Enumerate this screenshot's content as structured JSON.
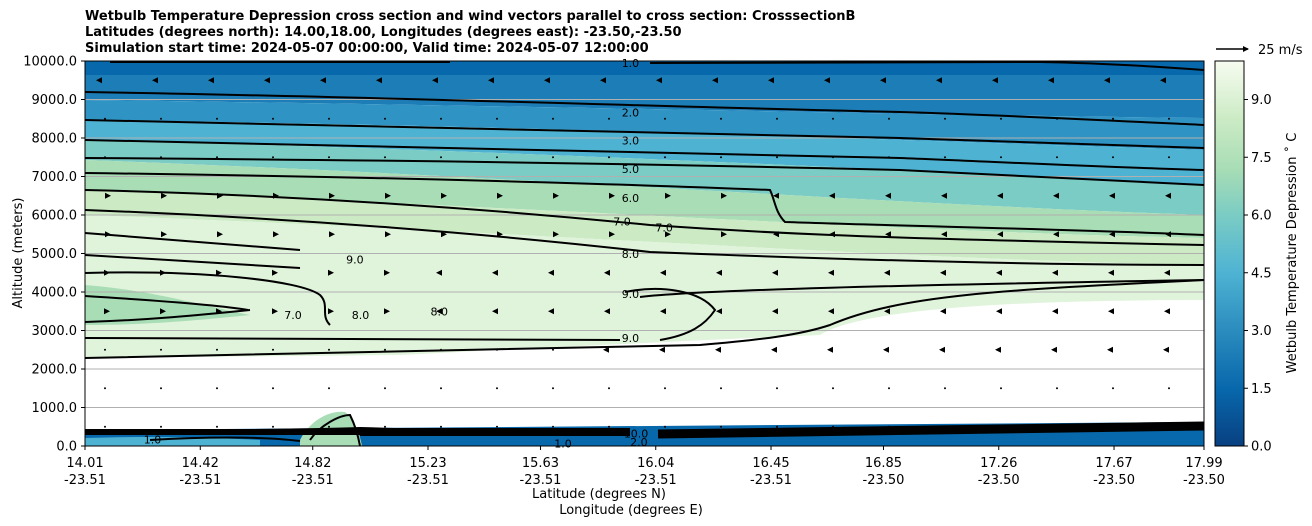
{
  "title_lines": [
    "Wetbulb Temperature Depression cross section and wind vectors parallel to cross section: CrosssectionB",
    "Latitudes (degrees north): 14.00,18.00, Longitudes (degrees east): -23.50,-23.50",
    "Simulation start time: 2024-05-07 00:00:00, Valid time: 2024-05-07 12:00:00"
  ],
  "chart_data": {
    "type": "heatmap",
    "ylabel": "Altitude (meters)",
    "xlabel_lat": "Latitude (degrees N)",
    "xlabel_lon": "Longitude (degrees E)",
    "ylim": [
      0,
      10000
    ],
    "y_ticks": [
      "0.0",
      "1000.0",
      "2000.0",
      "3000.0",
      "4000.0",
      "5000.0",
      "6000.0",
      "7000.0",
      "8000.0",
      "9000.0",
      "10000.0"
    ],
    "x_ticks": [
      {
        "lat": "14.01",
        "lon": "-23.51"
      },
      {
        "lat": "14.42",
        "lon": "-23.51"
      },
      {
        "lat": "14.82",
        "lon": "-23.51"
      },
      {
        "lat": "15.23",
        "lon": "-23.51"
      },
      {
        "lat": "15.63",
        "lon": "-23.51"
      },
      {
        "lat": "16.04",
        "lon": "-23.51"
      },
      {
        "lat": "16.45",
        "lon": "-23.51"
      },
      {
        "lat": "16.85",
        "lon": "-23.50"
      },
      {
        "lat": "17.26",
        "lon": "-23.50"
      },
      {
        "lat": "17.67",
        "lon": "-23.50"
      },
      {
        "lat": "17.99",
        "lon": "-23.50"
      }
    ],
    "grid": "horizontal",
    "colorbar": {
      "label": "Wetbulb Temperature Depression ˚ C",
      "range": [
        0,
        10
      ],
      "ticks": [
        "0.0",
        "1.5",
        "3.0",
        "4.5",
        "6.0",
        "7.5",
        "9.0"
      ],
      "tick_values": [
        0,
        1.5,
        3,
        4.5,
        6,
        7.5,
        9
      ],
      "colormap": "GnBu_r"
    },
    "quiver_key": "25 m/s",
    "contour_labels": [
      {
        "text": "1.0",
        "lat": 15.95,
        "alt": 9950
      },
      {
        "text": "2.0",
        "lat": 15.95,
        "alt": 8660
      },
      {
        "text": "3.0",
        "lat": 15.95,
        "alt": 7940
      },
      {
        "text": "5.0",
        "lat": 15.95,
        "alt": 7190
      },
      {
        "text": "6.0",
        "lat": 15.95,
        "alt": 6440
      },
      {
        "text": "7.0",
        "lat": 15.92,
        "alt": 5830
      },
      {
        "text": "7.0",
        "lat": 16.07,
        "alt": 5680
      },
      {
        "text": "8.0",
        "lat": 15.95,
        "alt": 4990
      },
      {
        "text": "9.0",
        "lat": 15.95,
        "alt": 3950
      },
      {
        "text": "9.0",
        "lat": 15.95,
        "alt": 2800
      },
      {
        "text": "9.0",
        "lat": 14.97,
        "alt": 4840
      },
      {
        "text": "8.0",
        "lat": 14.99,
        "alt": 3400
      },
      {
        "text": "8.0",
        "lat": 15.27,
        "alt": 3500
      },
      {
        "text": "7.0",
        "lat": 14.75,
        "alt": 3400
      },
      {
        "text": "1.0",
        "lat": 14.25,
        "alt": 170
      },
      {
        "text": "1.0",
        "lat": 15.71,
        "alt": 70
      },
      {
        "text": "10.0",
        "lat": 15.97,
        "alt": 330
      },
      {
        "text": "2.0",
        "lat": 15.98,
        "alt": 110
      }
    ]
  }
}
